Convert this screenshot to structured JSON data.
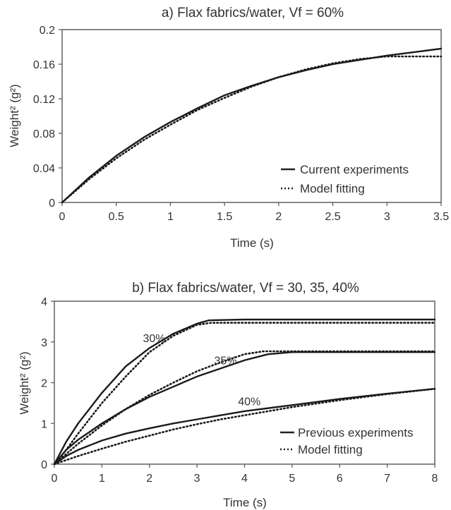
{
  "chart_data": [
    {
      "type": "line",
      "title": "a) Flax fabrics/water, Vf = 60%",
      "xlabel": "Time (s)",
      "ylabel": "Weight² (g²)",
      "xlim": [
        0,
        3.5
      ],
      "ylim": [
        0,
        0.2
      ],
      "xticks": [
        0,
        0.5,
        1,
        1.5,
        2,
        2.5,
        3,
        3.5
      ],
      "yticks": [
        0,
        0.04,
        0.08,
        0.12,
        0.16,
        0.2
      ],
      "xtick_labels": [
        "0",
        "0.5",
        "1",
        "1.5",
        "2",
        "2.5",
        "3",
        "3.5"
      ],
      "ytick_labels": [
        "0",
        "0.04",
        "0.08",
        "0.12",
        "0.16",
        "0.2"
      ],
      "grid": false,
      "legend_position": "bottom-right",
      "series": [
        {
          "name": "Current experiments",
          "style": "solid",
          "x": [
            0,
            0.25,
            0.5,
            0.75,
            1.0,
            1.25,
            1.5,
            1.75,
            2.0,
            2.25,
            2.5,
            2.75,
            3.0,
            3.25,
            3.5
          ],
          "y": [
            0,
            0.029,
            0.054,
            0.075,
            0.093,
            0.109,
            0.124,
            0.135,
            0.145,
            0.153,
            0.16,
            0.165,
            0.17,
            0.174,
            0.178
          ]
        },
        {
          "name": "Model fitting",
          "style": "dotted",
          "x": [
            0,
            0.25,
            0.5,
            0.75,
            1.0,
            1.25,
            1.5,
            1.75,
            2.0,
            2.25,
            2.5,
            2.75,
            3.0,
            3.25,
            3.5
          ],
          "y": [
            0,
            0.027,
            0.051,
            0.072,
            0.09,
            0.107,
            0.121,
            0.134,
            0.145,
            0.154,
            0.161,
            0.166,
            0.169,
            0.169,
            0.169
          ]
        }
      ]
    },
    {
      "type": "line",
      "title": "b) Flax fabrics/water, Vf = 30, 35, 40%",
      "xlabel": "Time (s)",
      "ylabel": "Weight² (g²)",
      "xlim": [
        0,
        8
      ],
      "ylim": [
        0,
        4
      ],
      "xticks": [
        0,
        1,
        2,
        3,
        4,
        5,
        6,
        7,
        8
      ],
      "yticks": [
        0,
        1,
        2,
        3,
        4
      ],
      "xtick_labels": [
        "0",
        "1",
        "2",
        "3",
        "4",
        "5",
        "6",
        "7",
        "8"
      ],
      "ytick_labels": [
        "0",
        "1",
        "2",
        "3",
        "4"
      ],
      "grid": false,
      "legend_position": "bottom-right",
      "legend": [
        {
          "name": "Previous experiments",
          "style": "solid"
        },
        {
          "name": "Model fitting",
          "style": "dotted"
        }
      ],
      "annotations": [
        {
          "text": "30%",
          "x": 2.1,
          "y": 3.0
        },
        {
          "text": "35%",
          "x": 3.6,
          "y": 2.45
        },
        {
          "text": "40%",
          "x": 4.1,
          "y": 1.45
        }
      ],
      "series": [
        {
          "label": "30%",
          "style": "solid",
          "x": [
            0,
            0.25,
            0.5,
            1.0,
            1.5,
            2.0,
            2.5,
            3.0,
            3.25,
            4.0,
            5.0,
            6.0,
            7.0,
            8.0
          ],
          "y": [
            0,
            0.55,
            1.0,
            1.75,
            2.4,
            2.85,
            3.2,
            3.45,
            3.53,
            3.55,
            3.55,
            3.55,
            3.55,
            3.55
          ]
        },
        {
          "label": "30%",
          "style": "dotted",
          "x": [
            0,
            0.25,
            0.5,
            1.0,
            1.5,
            2.0,
            2.5,
            3.0,
            3.3,
            4.0,
            5.0,
            6.0,
            7.0,
            8.0
          ],
          "y": [
            0,
            0.35,
            0.75,
            1.5,
            2.15,
            2.75,
            3.15,
            3.42,
            3.47,
            3.47,
            3.47,
            3.47,
            3.47,
            3.47
          ]
        },
        {
          "label": "35%",
          "style": "solid",
          "x": [
            0,
            0.25,
            0.5,
            1.0,
            1.5,
            2.0,
            2.5,
            3.0,
            3.5,
            4.0,
            4.5,
            5.0,
            6.0,
            7.0,
            8.0
          ],
          "y": [
            0,
            0.35,
            0.6,
            1.0,
            1.35,
            1.65,
            1.9,
            2.15,
            2.35,
            2.55,
            2.7,
            2.75,
            2.75,
            2.75,
            2.75
          ]
        },
        {
          "label": "35%",
          "style": "dotted",
          "x": [
            0,
            0.25,
            0.5,
            1.0,
            1.5,
            2.0,
            2.5,
            3.0,
            3.5,
            4.0,
            4.4,
            5.0,
            6.0,
            7.0,
            8.0
          ],
          "y": [
            0,
            0.25,
            0.5,
            0.95,
            1.35,
            1.7,
            2.0,
            2.28,
            2.5,
            2.7,
            2.77,
            2.77,
            2.77,
            2.77,
            2.77
          ]
        },
        {
          "label": "40%",
          "style": "solid",
          "x": [
            0,
            0.25,
            0.5,
            1.0,
            1.5,
            2.0,
            2.5,
            3.0,
            3.5,
            4.0,
            5.0,
            6.0,
            7.0,
            8.0
          ],
          "y": [
            0,
            0.2,
            0.35,
            0.58,
            0.75,
            0.88,
            1.0,
            1.1,
            1.2,
            1.3,
            1.45,
            1.6,
            1.73,
            1.85
          ]
        },
        {
          "label": "40%",
          "style": "dotted",
          "x": [
            0,
            0.5,
            1.0,
            1.5,
            2.0,
            2.5,
            3.0,
            3.5,
            4.0,
            5.0,
            6.0,
            7.0,
            8.0
          ],
          "y": [
            0,
            0.2,
            0.38,
            0.55,
            0.7,
            0.85,
            0.98,
            1.1,
            1.2,
            1.4,
            1.57,
            1.72,
            1.85
          ]
        }
      ]
    }
  ]
}
